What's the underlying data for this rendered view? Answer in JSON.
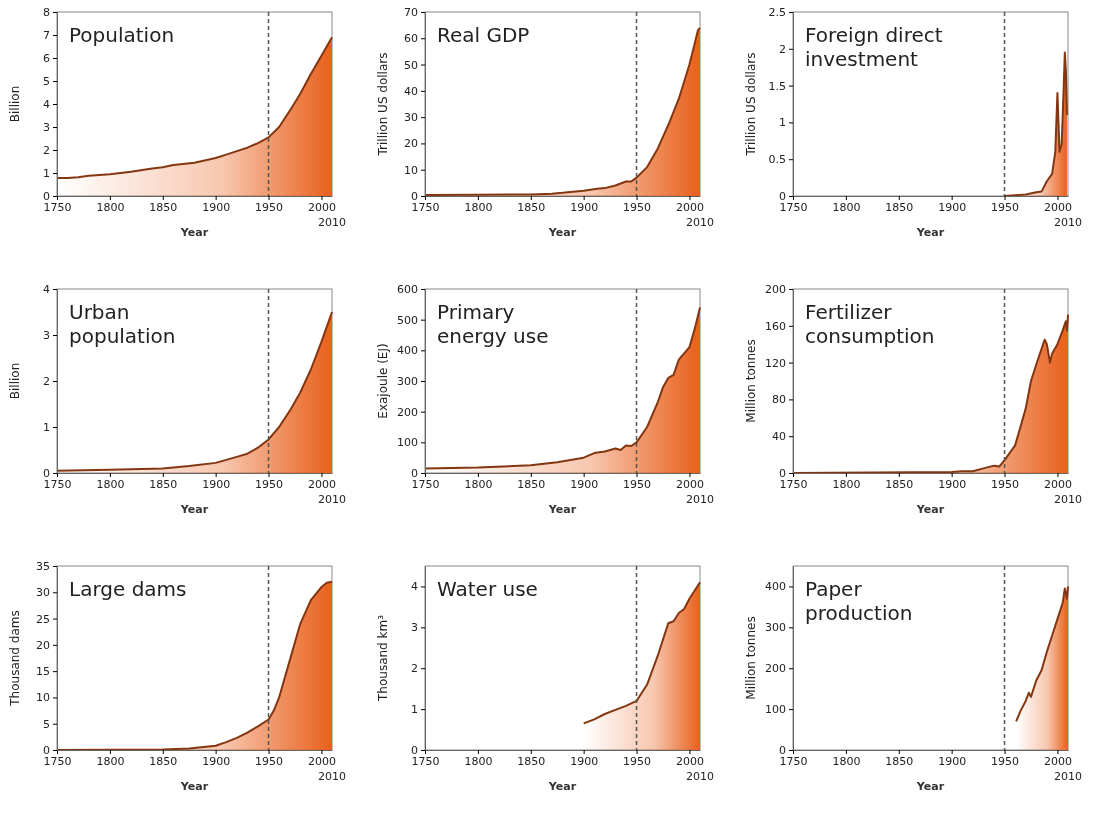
{
  "chart_data": [
    {
      "type": "area",
      "title": "Population",
      "xlabel": "Year",
      "ylabel": "Billion",
      "annotations": [
        "2010"
      ],
      "xlim": [
        1750,
        2010
      ],
      "xticks": [
        1750,
        1800,
        1850,
        1900,
        1950,
        2000
      ],
      "ylim": [
        0,
        8
      ],
      "yticks": [
        0,
        1,
        2,
        3,
        4,
        5,
        6,
        7,
        8
      ],
      "ref_lines": [
        {
          "axis": "x",
          "value": 1950,
          "line_style": "dashed",
          "color": "#555555"
        }
      ],
      "x": [
        1750,
        1760,
        1770,
        1780,
        1800,
        1820,
        1840,
        1850,
        1860,
        1880,
        1900,
        1910,
        1920,
        1930,
        1940,
        1950,
        1960,
        1970,
        1980,
        1990,
        2000,
        2010
      ],
      "series": [
        {
          "color": "#e8601c",
          "values": [
            0.78,
            0.78,
            0.82,
            0.88,
            0.95,
            1.05,
            1.2,
            1.25,
            1.35,
            1.45,
            1.65,
            1.8,
            1.95,
            2.1,
            2.3,
            2.55,
            3.0,
            3.7,
            4.45,
            5.3,
            6.1,
            6.9
          ]
        }
      ]
    },
    {
      "type": "area",
      "title": "Real GDP",
      "xlabel": "Year",
      "ylabel": "Trillion US dollars",
      "annotations": [
        "2010"
      ],
      "xlim": [
        1750,
        2010
      ],
      "xticks": [
        1750,
        1800,
        1850,
        1900,
        1950,
        2000
      ],
      "ylim": [
        0,
        70
      ],
      "yticks": [
        0,
        10,
        20,
        30,
        40,
        50,
        60,
        70
      ],
      "ref_lines": [
        {
          "axis": "x",
          "value": 1950,
          "line_style": "dashed",
          "color": "#555555"
        }
      ],
      "x": [
        1750,
        1800,
        1850,
        1870,
        1880,
        1900,
        1913,
        1920,
        1930,
        1940,
        1945,
        1950,
        1960,
        1970,
        1980,
        1990,
        2000,
        2005,
        2008,
        2010
      ],
      "series": [
        {
          "color": "#e8601c",
          "values": [
            0.4,
            0.5,
            0.6,
            0.9,
            1.2,
            2,
            2.8,
            3,
            4,
            5.5,
            5.5,
            7,
            11,
            18,
            27,
            37,
            50,
            58,
            63,
            64
          ]
        }
      ]
    },
    {
      "type": "area",
      "title": "Foreign direct\ninvestment",
      "xlabel": "Year",
      "ylabel": "Trillion US dollars",
      "annotations": [
        "2010"
      ],
      "xlim": [
        1750,
        2010
      ],
      "xticks": [
        1750,
        1800,
        1850,
        1900,
        1950,
        2000
      ],
      "ylim": [
        0,
        2.5
      ],
      "yticks": [
        0,
        0.5,
        1,
        1.5,
        2,
        2.5
      ],
      "ref_lines": [
        {
          "axis": "x",
          "value": 1950,
          "line_style": "dashed",
          "color": "#555555"
        }
      ],
      "x": [
        1950,
        1960,
        1970,
        1980,
        1985,
        1990,
        1995,
        1998,
        2000,
        2002,
        2004,
        2006,
        2007,
        2008,
        2009
      ],
      "series": [
        {
          "color": "#e8601c",
          "values": [
            0,
            0.01,
            0.02,
            0.05,
            0.06,
            0.2,
            0.3,
            0.6,
            1.4,
            0.6,
            0.7,
            1.5,
            1.95,
            1.7,
            1.1
          ]
        }
      ]
    },
    {
      "type": "area",
      "title": "Urban\npopulation",
      "xlabel": "Year",
      "ylabel": "Billion",
      "annotations": [
        "2010"
      ],
      "xlim": [
        1750,
        2010
      ],
      "xticks": [
        1750,
        1800,
        1850,
        1900,
        1950,
        2000
      ],
      "ylim": [
        0,
        4
      ],
      "yticks": [
        0,
        1,
        2,
        3,
        4
      ],
      "ref_lines": [
        {
          "axis": "x",
          "value": 1950,
          "line_style": "dashed",
          "color": "#555555"
        }
      ],
      "x": [
        1750,
        1800,
        1850,
        1875,
        1900,
        1920,
        1930,
        1940,
        1950,
        1960,
        1970,
        1980,
        1990,
        2000,
        2010
      ],
      "series": [
        {
          "color": "#e8601c",
          "values": [
            0.05,
            0.07,
            0.1,
            0.15,
            0.22,
            0.35,
            0.42,
            0.55,
            0.73,
            1.0,
            1.35,
            1.75,
            2.25,
            2.85,
            3.5
          ]
        }
      ]
    },
    {
      "type": "area",
      "title": "Primary\nenergy use",
      "xlabel": "Year",
      "ylabel": "Exajoule (EJ)",
      "annotations": [
        "2010"
      ],
      "xlim": [
        1750,
        2010
      ],
      "xticks": [
        1750,
        1800,
        1850,
        1900,
        1950,
        2000
      ],
      "ylim": [
        0,
        600
      ],
      "yticks": [
        0,
        100,
        200,
        300,
        400,
        500,
        600
      ],
      "ref_lines": [
        {
          "axis": "x",
          "value": 1950,
          "line_style": "dashed",
          "color": "#555555"
        }
      ],
      "x": [
        1750,
        1800,
        1850,
        1875,
        1900,
        1910,
        1920,
        1930,
        1935,
        1940,
        1945,
        1950,
        1960,
        1970,
        1975,
        1980,
        1985,
        1990,
        1995,
        2000,
        2005,
        2010
      ],
      "series": [
        {
          "color": "#e8601c",
          "values": [
            15,
            18,
            25,
            35,
            50,
            65,
            70,
            80,
            75,
            90,
            88,
            100,
            150,
            230,
            280,
            310,
            320,
            370,
            390,
            410,
            470,
            540
          ]
        }
      ]
    },
    {
      "type": "area",
      "title": "Fertilizer\nconsumption",
      "xlabel": "Year",
      "ylabel": "Million tonnes",
      "annotations": [
        "2010"
      ],
      "xlim": [
        1750,
        2010
      ],
      "xticks": [
        1750,
        1800,
        1850,
        1900,
        1950,
        2000
      ],
      "ylim": [
        0,
        200
      ],
      "yticks": [
        0,
        40,
        80,
        120,
        160,
        200
      ],
      "ref_lines": [
        {
          "axis": "x",
          "value": 1950,
          "line_style": "dashed",
          "color": "#555555"
        }
      ],
      "x": [
        1750,
        1900,
        1910,
        1920,
        1930,
        1940,
        1945,
        1950,
        1960,
        1970,
        1975,
        1980,
        1985,
        1988,
        1990,
        1993,
        1995,
        2000,
        2005,
        2008,
        2009,
        2010
      ],
      "series": [
        {
          "color": "#e8601c",
          "values": [
            0,
            1,
            2,
            2,
            5,
            8,
            7,
            14,
            30,
            70,
            100,
            118,
            135,
            145,
            140,
            120,
            130,
            140,
            155,
            165,
            155,
            172
          ]
        }
      ]
    },
    {
      "type": "area",
      "title": "Large dams",
      "xlabel": "Year",
      "ylabel": "Thousand dams",
      "annotations": [
        "2010"
      ],
      "xlim": [
        1750,
        2010
      ],
      "xticks": [
        1750,
        1800,
        1850,
        1900,
        1950,
        2000
      ],
      "ylim": [
        0,
        35
      ],
      "yticks": [
        0,
        5,
        10,
        15,
        20,
        25,
        30,
        35
      ],
      "ref_lines": [
        {
          "axis": "x",
          "value": 1950,
          "line_style": "dashed",
          "color": "#555555"
        }
      ],
      "x": [
        1750,
        1850,
        1875,
        1900,
        1910,
        1920,
        1930,
        1940,
        1950,
        1955,
        1960,
        1970,
        1980,
        1990,
        2000,
        2005,
        2010
      ],
      "series": [
        {
          "color": "#e8601c",
          "values": [
            0,
            0.1,
            0.3,
            0.8,
            1.5,
            2.3,
            3.3,
            4.5,
            5.8,
            7.5,
            10,
            17,
            24,
            28.5,
            31,
            31.8,
            32
          ]
        }
      ]
    },
    {
      "type": "area",
      "title": "Water use",
      "xlabel": "Year",
      "ylabel": "Thousand km³",
      "annotations": [
        "2010"
      ],
      "xlim": [
        1750,
        2010
      ],
      "xticks": [
        1750,
        1800,
        1850,
        1900,
        1950,
        2000
      ],
      "ylim": [
        0,
        4.5
      ],
      "yticks": [
        0,
        1,
        2,
        3,
        4
      ],
      "ref_lines": [
        {
          "axis": "x",
          "value": 1950,
          "line_style": "dashed",
          "color": "#555555"
        }
      ],
      "x": [
        1900,
        1910,
        1920,
        1930,
        1940,
        1950,
        1960,
        1970,
        1975,
        1980,
        1985,
        1990,
        1995,
        2000,
        2005,
        2010
      ],
      "series": [
        {
          "color": "#e8601c",
          "values": [
            0.65,
            0.75,
            0.88,
            0.98,
            1.08,
            1.2,
            1.6,
            2.3,
            2.7,
            3.1,
            3.15,
            3.35,
            3.45,
            3.7,
            3.9,
            4.1
          ]
        }
      ]
    },
    {
      "type": "area",
      "title": "Paper\nproduction",
      "xlabel": "Year",
      "ylabel": "Million tonnes",
      "annotations": [
        "2010"
      ],
      "xlim": [
        1750,
        2010
      ],
      "xticks": [
        1750,
        1800,
        1850,
        1900,
        1950,
        2000
      ],
      "ylim": [
        0,
        450
      ],
      "yticks": [
        0,
        100,
        200,
        300,
        400
      ],
      "ref_lines": [
        {
          "axis": "x",
          "value": 1950,
          "line_style": "dashed",
          "color": "#555555"
        }
      ],
      "x": [
        1961,
        1965,
        1970,
        1973,
        1975,
        1980,
        1985,
        1990,
        1995,
        2000,
        2005,
        2007,
        2009,
        2010
      ],
      "series": [
        {
          "color": "#e8601c",
          "values": [
            70,
            95,
            120,
            140,
            130,
            170,
            195,
            240,
            280,
            320,
            360,
            395,
            370,
            400
          ]
        }
      ]
    }
  ]
}
